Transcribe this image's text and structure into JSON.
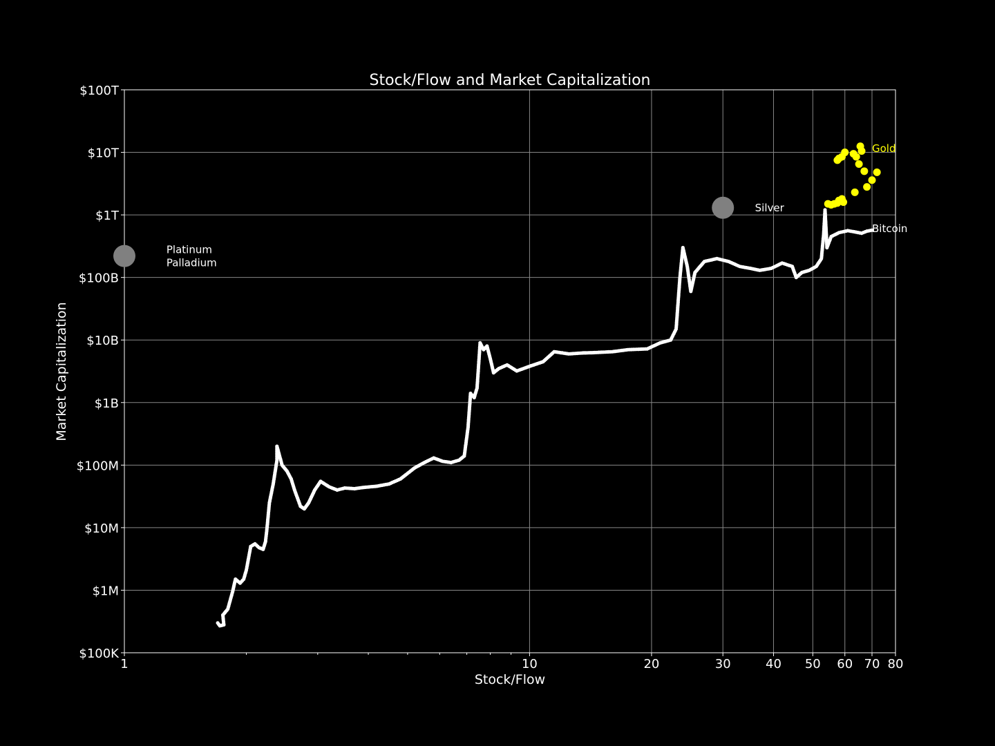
{
  "chart_data": {
    "type": "scatter",
    "title": "Stock/Flow and Market Capitalization",
    "xlabel": "Stock/Flow",
    "ylabel": "Market Capitalization",
    "xscale": "log",
    "yscale": "log",
    "xlim": [
      1,
      80
    ],
    "ylim": [
      100000,
      100000000000000
    ],
    "grid": true,
    "x_ticks": [
      {
        "value": 1,
        "label": "1"
      },
      {
        "value": 10,
        "label": "10"
      },
      {
        "value": 20,
        "label": "20"
      },
      {
        "value": 30,
        "label": "30"
      },
      {
        "value": 40,
        "label": "40"
      },
      {
        "value": 50,
        "label": "50"
      },
      {
        "value": 60,
        "label": "60"
      },
      {
        "value": 70,
        "label": "70"
      },
      {
        "value": 80,
        "label": "80"
      }
    ],
    "y_ticks": [
      {
        "value": 100000,
        "label": "$100K"
      },
      {
        "value": 1000000,
        "label": "$1M"
      },
      {
        "value": 10000000,
        "label": "$10M"
      },
      {
        "value": 100000000,
        "label": "$100M"
      },
      {
        "value": 1000000000,
        "label": "$1B"
      },
      {
        "value": 10000000000,
        "label": "$10B"
      },
      {
        "value": 100000000000,
        "label": "$100B"
      },
      {
        "value": 1000000000000,
        "label": "$1T"
      },
      {
        "value": 10000000000000,
        "label": "$10T"
      },
      {
        "value": 100000000000000,
        "label": "$100T"
      }
    ],
    "series": [
      {
        "name": "Bitcoin",
        "color": "#ffffff",
        "label_at": [
          70,
          600000000000
        ],
        "points": [
          [
            1.7,
            300000
          ],
          [
            1.72,
            270000
          ],
          [
            1.76,
            280000
          ],
          [
            1.75,
            400000
          ],
          [
            1.8,
            500000
          ],
          [
            1.85,
            950000
          ],
          [
            1.88,
            1500000
          ],
          [
            1.93,
            1300000
          ],
          [
            1.97,
            1500000
          ],
          [
            2.0,
            2100000
          ],
          [
            2.05,
            5000000
          ],
          [
            2.1,
            5500000
          ],
          [
            2.15,
            4800000
          ],
          [
            2.2,
            4500000
          ],
          [
            2.23,
            6000000
          ],
          [
            2.25,
            10000000
          ],
          [
            2.28,
            25000000
          ],
          [
            2.33,
            50000000
          ],
          [
            2.38,
            120000000
          ],
          [
            2.38,
            200000000
          ],
          [
            2.45,
            100000000
          ],
          [
            2.52,
            80000000
          ],
          [
            2.58,
            60000000
          ],
          [
            2.63,
            40000000
          ],
          [
            2.72,
            22000000
          ],
          [
            2.78,
            20000000
          ],
          [
            2.85,
            25000000
          ],
          [
            2.95,
            40000000
          ],
          [
            3.05,
            55000000
          ],
          [
            3.2,
            45000000
          ],
          [
            3.35,
            40000000
          ],
          [
            3.5,
            43000000
          ],
          [
            3.7,
            42000000
          ],
          [
            3.9,
            44000000
          ],
          [
            4.2,
            46000000
          ],
          [
            4.5,
            50000000
          ],
          [
            4.8,
            60000000
          ],
          [
            5.2,
            90000000
          ],
          [
            5.5,
            110000000
          ],
          [
            5.8,
            130000000
          ],
          [
            6.1,
            115000000
          ],
          [
            6.4,
            110000000
          ],
          [
            6.7,
            120000000
          ],
          [
            6.9,
            140000000
          ],
          [
            7.05,
            400000000
          ],
          [
            7.15,
            1400000000
          ],
          [
            7.3,
            1200000000
          ],
          [
            7.42,
            1700000000
          ],
          [
            7.55,
            9000000000
          ],
          [
            7.7,
            7000000000
          ],
          [
            7.85,
            8000000000
          ],
          [
            8.0,
            5000000000
          ],
          [
            8.15,
            3000000000
          ],
          [
            8.4,
            3500000000
          ],
          [
            8.8,
            4000000000
          ],
          [
            9.3,
            3200000000
          ],
          [
            10.0,
            3800000000
          ],
          [
            10.8,
            4500000000
          ],
          [
            11.5,
            6500000000
          ],
          [
            12.5,
            6000000000
          ],
          [
            13.5,
            6200000000
          ],
          [
            14.5,
            6300000000
          ],
          [
            16,
            6500000000
          ],
          [
            17.5,
            7000000000
          ],
          [
            19.5,
            7200000000
          ],
          [
            21,
            9000000000
          ],
          [
            22.3,
            10000000000
          ],
          [
            23,
            15000000000
          ],
          [
            23.5,
            100000000000
          ],
          [
            23.9,
            300000000000
          ],
          [
            24.5,
            150000000000
          ],
          [
            25,
            60000000000
          ],
          [
            25.6,
            120000000000
          ],
          [
            27,
            180000000000
          ],
          [
            29,
            200000000000
          ],
          [
            31,
            180000000000
          ],
          [
            33,
            150000000000
          ],
          [
            35,
            140000000000
          ],
          [
            37,
            130000000000
          ],
          [
            39.5,
            140000000000
          ],
          [
            42,
            170000000000
          ],
          [
            44.5,
            150000000000
          ],
          [
            45.5,
            100000000000
          ],
          [
            47,
            120000000000
          ],
          [
            49,
            130000000000
          ],
          [
            51,
            150000000000
          ],
          [
            52.5,
            200000000000
          ],
          [
            53.2,
            500000000000
          ],
          [
            53.6,
            1200000000000
          ],
          [
            54.2,
            300000000000
          ],
          [
            55.5,
            450000000000
          ],
          [
            58,
            520000000000
          ],
          [
            61,
            560000000000
          ],
          [
            64,
            530000000000
          ],
          [
            66,
            510000000000
          ],
          [
            68,
            550000000000
          ],
          [
            70,
            570000000000
          ]
        ]
      },
      {
        "name": "Gold",
        "color": "#ffff00",
        "label_at": [
          70,
          11500000000000
        ],
        "points": [
          [
            58,
            8000000000000
          ],
          [
            59,
            8500000000000
          ],
          [
            60,
            10000000000000
          ],
          [
            57.5,
            7500000000000
          ],
          [
            63,
            9500000000000
          ],
          [
            64,
            8500000000000
          ],
          [
            65.5,
            12500000000000
          ],
          [
            66,
            10500000000000
          ],
          [
            65,
            6500000000000
          ],
          [
            67,
            5000000000000
          ],
          [
            70,
            3600000000000
          ],
          [
            72,
            4800000000000
          ],
          [
            68,
            2800000000000
          ],
          [
            63.5,
            2300000000000
          ],
          [
            54.5,
            1500000000000
          ],
          [
            55.5,
            1450000000000
          ],
          [
            56.5,
            1500000000000
          ],
          [
            57.5,
            1550000000000
          ],
          [
            58,
            1700000000000
          ],
          [
            59,
            1800000000000
          ],
          [
            59.5,
            1600000000000
          ]
        ]
      },
      {
        "name": "Silver",
        "color": "#808080",
        "points": [
          [
            30,
            1300000000000
          ]
        ],
        "label_at": [
          36,
          1300000000000
        ]
      },
      {
        "name": "Platinum Palladium",
        "color": "#808080",
        "points": [
          [
            1,
            220000000000
          ]
        ],
        "label_at": [
          1.27,
          220000000000
        ],
        "label_lines": [
          "Platinum",
          "Palladium"
        ]
      }
    ]
  }
}
